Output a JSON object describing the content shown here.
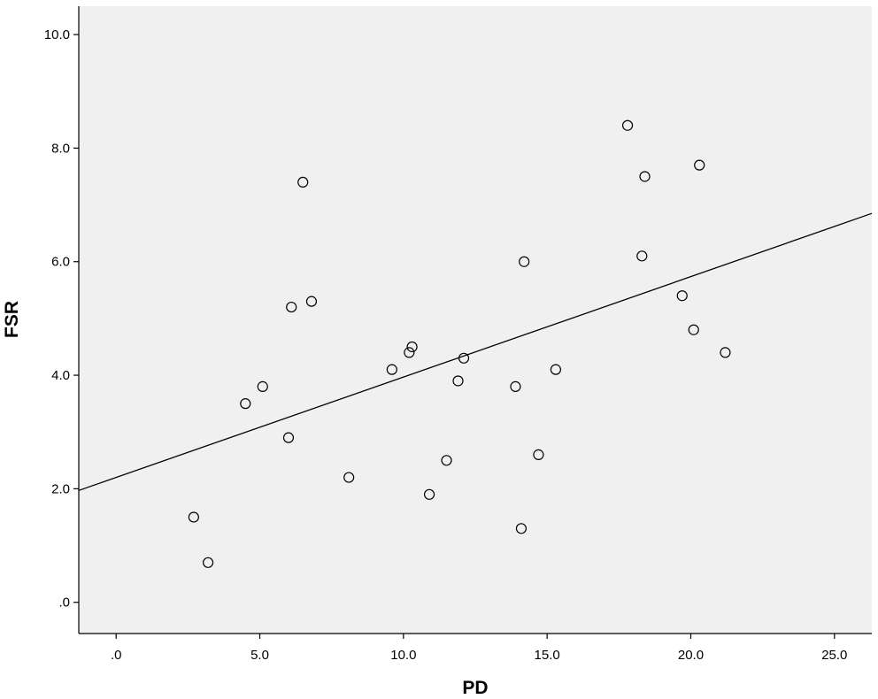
{
  "chart_data": {
    "type": "scatter",
    "title": "",
    "xlabel": "PD",
    "ylabel": "FSR",
    "xlim": [
      -1.3,
      26.3
    ],
    "ylim": [
      -0.55,
      10.5
    ],
    "x_ticks": [
      0,
      5,
      10,
      15,
      20,
      25
    ],
    "x_tick_labels": [
      ".0",
      "5.0",
      "10.0",
      "15.0",
      "20.0",
      "25.0"
    ],
    "y_ticks": [
      0,
      2,
      4,
      6,
      8,
      10
    ],
    "y_tick_labels": [
      ".0",
      "2.0",
      "4.0",
      "6.0",
      "8.0",
      "10.0"
    ],
    "grid": false,
    "legend": "none",
    "colors": {
      "plot_background": "#f0f0f0",
      "marker_edge": "#000000",
      "fit_line": "#000000"
    },
    "points": [
      {
        "x": 2.7,
        "y": 1.5
      },
      {
        "x": 3.2,
        "y": 0.7
      },
      {
        "x": 4.5,
        "y": 3.5
      },
      {
        "x": 5.1,
        "y": 3.8
      },
      {
        "x": 6.0,
        "y": 2.9
      },
      {
        "x": 6.1,
        "y": 5.2
      },
      {
        "x": 6.5,
        "y": 7.4
      },
      {
        "x": 6.8,
        "y": 5.3
      },
      {
        "x": 8.1,
        "y": 2.2
      },
      {
        "x": 9.6,
        "y": 4.1
      },
      {
        "x": 10.2,
        "y": 4.4
      },
      {
        "x": 10.3,
        "y": 4.5
      },
      {
        "x": 10.9,
        "y": 1.9
      },
      {
        "x": 11.5,
        "y": 2.5
      },
      {
        "x": 11.9,
        "y": 3.9
      },
      {
        "x": 12.1,
        "y": 4.3
      },
      {
        "x": 13.9,
        "y": 3.8
      },
      {
        "x": 14.1,
        "y": 1.3
      },
      {
        "x": 14.2,
        "y": 6.0
      },
      {
        "x": 14.7,
        "y": 2.6
      },
      {
        "x": 15.3,
        "y": 4.1
      },
      {
        "x": 17.8,
        "y": 8.4
      },
      {
        "x": 18.3,
        "y": 6.1
      },
      {
        "x": 18.4,
        "y": 7.5
      },
      {
        "x": 19.7,
        "y": 5.4
      },
      {
        "x": 20.1,
        "y": 4.8
      },
      {
        "x": 20.3,
        "y": 7.7
      },
      {
        "x": 21.2,
        "y": 4.4
      }
    ],
    "fit_line": {
      "x": [
        -1.3,
        26.3
      ],
      "y": [
        1.97,
        6.85
      ]
    }
  }
}
